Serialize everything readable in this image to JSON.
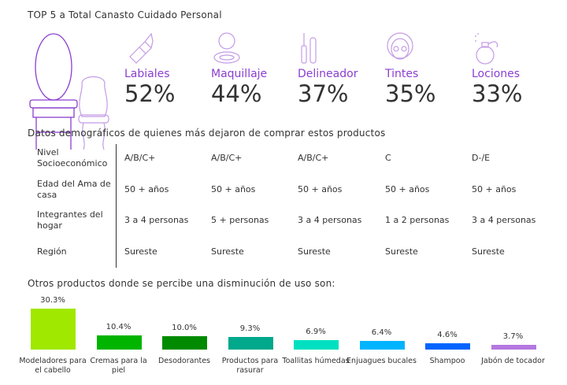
{
  "title": "TOP 5 a Total Canasto Cuidado Personal",
  "top5": [
    {
      "label": "Labiales",
      "pct": "52%",
      "icon": "lipstick-icon"
    },
    {
      "label": "Maquillaje",
      "pct": "44%",
      "icon": "compact-icon"
    },
    {
      "label": "Delineador",
      "pct": "37%",
      "icon": "mascara-icon"
    },
    {
      "label": "Tintes",
      "pct": "35%",
      "icon": "face-mask-icon"
    },
    {
      "label": "Lociones",
      "pct": "33%",
      "icon": "perfume-icon"
    }
  ],
  "demo_title": "Datos demográficos  de quienes más dejaron de comprar estos productos",
  "demo_rows": [
    {
      "label": "Nivel Socioeconómico",
      "values": [
        "A/B/C+",
        "A/B/C+",
        "A/B/C+",
        "C",
        "D-/E"
      ]
    },
    {
      "label": "Edad del Ama de casa",
      "values": [
        "50 + años",
        "50 + años",
        "50 + años",
        "50 + años",
        "50 + años"
      ]
    },
    {
      "label": "Integrantes del hogar",
      "values": [
        "3 a 4 personas",
        "5 + personas",
        "3 a 4 personas",
        "1 a 2  personas",
        "3 a 4 personas"
      ]
    },
    {
      "label": "Región",
      "values": [
        "Sureste",
        "Sureste",
        "Sureste",
        "Sureste",
        "Sureste"
      ]
    }
  ],
  "chart_title": "Otros productos  donde se percibe una disminución  de uso son:",
  "chart_data": {
    "type": "bar",
    "title": "Otros productos  donde se percibe una disminución  de uso son:",
    "categories": [
      "Modeladores para el cabello",
      "Cremas para la piel",
      "Desodorantes",
      "Productos para rasurar",
      "Toallitas húmedas",
      "Enjuagues bucales",
      "Shampoo",
      "Jabón de tocador"
    ],
    "values": [
      30.3,
      10.4,
      10.0,
      9.3,
      6.9,
      6.4,
      4.6,
      3.7
    ],
    "labels": [
      "30.3%",
      "10.4%",
      "10.0%",
      "9.3%",
      "6.9%",
      "6.4%",
      "4.6%",
      "3.7%"
    ],
    "colors": [
      "#a0e800",
      "#00b400",
      "#008a00",
      "#00a88c",
      "#00e0c0",
      "#00b4ff",
      "#0064ff",
      "#b478e0"
    ],
    "grid": false,
    "legend": "none"
  }
}
